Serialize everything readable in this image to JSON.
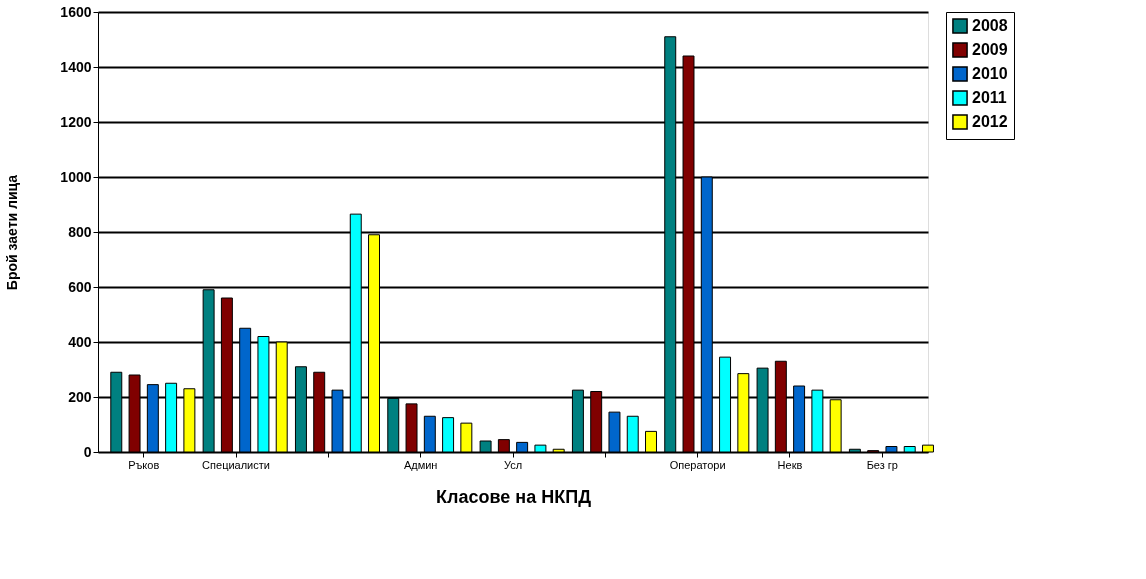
{
  "chart_data": {
    "type": "bar",
    "xlabel": "Класове на НКПД",
    "ylabel": "Брой заети лица",
    "categories": [
      "Ръков",
      "Специалисти",
      null,
      "Админ",
      "Усл",
      null,
      "Оператори",
      "Некв",
      "Без гр"
    ],
    "series": [
      {
        "name": "2008",
        "color": "#008080",
        "values": [
          290,
          590,
          310,
          195,
          40,
          225,
          1510,
          305,
          10
        ]
      },
      {
        "name": "2009",
        "color": "#800000",
        "values": [
          280,
          560,
          290,
          175,
          45,
          220,
          1440,
          330,
          5
        ]
      },
      {
        "name": "2010",
        "color": "#0066cc",
        "values": [
          245,
          450,
          225,
          130,
          35,
          145,
          1000,
          240,
          20
        ]
      },
      {
        "name": "2011",
        "color": "#00ffff",
        "values": [
          250,
          420,
          865,
          125,
          25,
          130,
          345,
          225,
          20
        ]
      },
      {
        "name": "2012",
        "color": "#ffff00",
        "values": [
          230,
          400,
          790,
          105,
          10,
          75,
          285,
          190,
          25
        ]
      }
    ],
    "ylim": [
      0,
      1600
    ],
    "yticks": [
      0,
      200,
      400,
      600,
      800,
      1000,
      1200,
      1400,
      1600
    ],
    "grid": "y",
    "legend": "right"
  }
}
